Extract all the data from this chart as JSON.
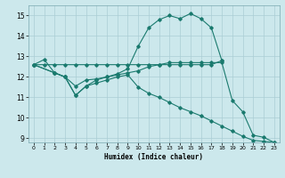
{
  "background_color": "#cce8ec",
  "grid_color": "#aacdd4",
  "line_color": "#1a7a6e",
  "xlabel": "Humidex (Indice chaleur)",
  "xlim": [
    -0.5,
    23.5
  ],
  "ylim": [
    8.8,
    15.5
  ],
  "yticks": [
    9,
    10,
    11,
    12,
    13,
    14,
    15
  ],
  "xticks": [
    0,
    1,
    2,
    3,
    4,
    5,
    6,
    7,
    8,
    9,
    10,
    11,
    12,
    13,
    14,
    15,
    16,
    17,
    18,
    19,
    20,
    21,
    22,
    23
  ],
  "line1_x": [
    0,
    1,
    2,
    3,
    4,
    5,
    6,
    7,
    8,
    9,
    10,
    11,
    12,
    13,
    14,
    15,
    16,
    17,
    18
  ],
  "line1_y": [
    12.6,
    12.85,
    12.2,
    12.0,
    11.1,
    11.55,
    11.85,
    12.0,
    12.15,
    12.4,
    13.5,
    14.4,
    14.8,
    15.0,
    14.85,
    15.1,
    14.85,
    14.4,
    12.8
  ],
  "line2_x": [
    0,
    1,
    2,
    3,
    4,
    5,
    6,
    7,
    8,
    9,
    10,
    11,
    12,
    13,
    14,
    15,
    16,
    17,
    18
  ],
  "line2_y": [
    12.6,
    12.6,
    12.6,
    12.6,
    12.6,
    12.6,
    12.6,
    12.6,
    12.6,
    12.6,
    12.6,
    12.6,
    12.6,
    12.6,
    12.6,
    12.6,
    12.6,
    12.6,
    12.8
  ],
  "line3_x": [
    0,
    2,
    3,
    4,
    5,
    6,
    7,
    8,
    9,
    10,
    11,
    12,
    13,
    14,
    15,
    16,
    17,
    18,
    19,
    20,
    21,
    22,
    23
  ],
  "line3_y": [
    12.6,
    12.2,
    12.0,
    11.55,
    11.85,
    11.9,
    12.0,
    12.1,
    12.2,
    12.3,
    12.5,
    12.6,
    12.7,
    12.7,
    12.7,
    12.7,
    12.7,
    12.7,
    10.85,
    10.3,
    9.15,
    9.05,
    8.8
  ],
  "line4_x": [
    0,
    2,
    3,
    4,
    5,
    6,
    7,
    8,
    9,
    10,
    11,
    12,
    13,
    14,
    15,
    16,
    17,
    18,
    19,
    20,
    21,
    22,
    23
  ],
  "line4_y": [
    12.6,
    12.2,
    12.0,
    11.1,
    11.55,
    11.7,
    11.85,
    12.0,
    12.1,
    11.5,
    11.2,
    11.0,
    10.75,
    10.5,
    10.3,
    10.1,
    9.85,
    9.6,
    9.35,
    9.1,
    8.9,
    8.85,
    8.8
  ]
}
